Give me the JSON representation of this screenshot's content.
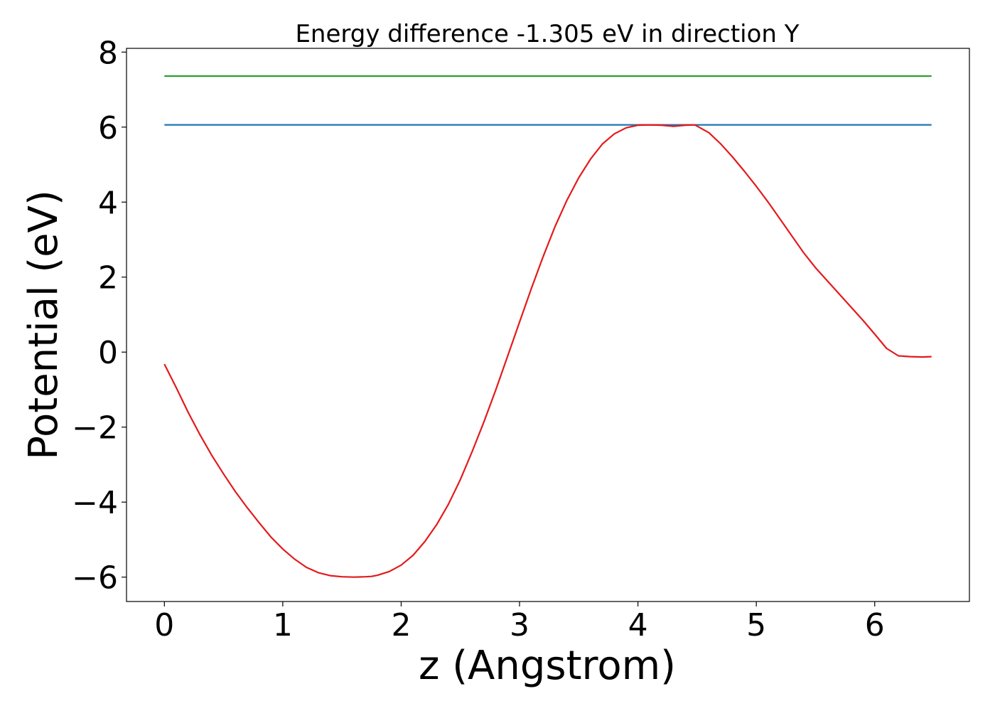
{
  "chart_data": {
    "type": "line",
    "title": "Energy difference -1.305 eV in direction Y",
    "xlabel": "z (Angstrom)",
    "ylabel": "Potential (eV)",
    "xlim": [
      -0.32,
      6.8
    ],
    "ylim": [
      -6.65,
      8.1
    ],
    "xticks": [
      0,
      1,
      2,
      3,
      4,
      5,
      6
    ],
    "yticks": [
      -6,
      -4,
      -2,
      0,
      2,
      4,
      6,
      8
    ],
    "ytick_labels": [
      "−6",
      "−4",
      "−2",
      "0",
      "2",
      "4",
      "6",
      "8"
    ],
    "grid": false,
    "series": [
      {
        "color": "#2ca02c",
        "x": [
          0,
          6.48
        ],
        "y": [
          7.36,
          7.36
        ]
      },
      {
        "color": "#1f77b4",
        "x": [
          0,
          6.48
        ],
        "y": [
          6.06,
          6.06
        ]
      },
      {
        "color": "#e31a1c",
        "x": [
          0,
          0.1,
          0.2,
          0.3,
          0.4,
          0.5,
          0.6,
          0.7,
          0.8,
          0.9,
          1.0,
          1.1,
          1.2,
          1.3,
          1.4,
          1.5,
          1.6,
          1.7,
          1.75,
          1.8,
          1.9,
          2.0,
          2.1,
          2.2,
          2.3,
          2.4,
          2.5,
          2.6,
          2.7,
          2.8,
          2.9,
          3.0,
          3.1,
          3.2,
          3.3,
          3.4,
          3.5,
          3.6,
          3.7,
          3.8,
          3.9,
          4.0,
          4.1,
          4.2,
          4.3,
          4.4,
          4.48,
          4.6,
          4.7,
          4.8,
          4.9,
          5.0,
          5.1,
          5.2,
          5.3,
          5.4,
          5.5,
          5.6,
          5.7,
          5.8,
          5.9,
          6.0,
          6.1,
          6.2,
          6.3,
          6.4,
          6.48
        ],
        "y": [
          -0.32,
          -0.95,
          -1.6,
          -2.2,
          -2.75,
          -3.25,
          -3.72,
          -4.15,
          -4.55,
          -4.93,
          -5.25,
          -5.52,
          -5.74,
          -5.88,
          -5.96,
          -5.99,
          -6.0,
          -5.99,
          -5.98,
          -5.95,
          -5.85,
          -5.68,
          -5.42,
          -5.05,
          -4.6,
          -4.05,
          -3.4,
          -2.65,
          -1.85,
          -1.0,
          -0.1,
          0.8,
          1.7,
          2.55,
          3.35,
          4.05,
          4.65,
          5.15,
          5.55,
          5.82,
          5.98,
          6.05,
          6.06,
          6.05,
          6.02,
          6.05,
          6.06,
          5.85,
          5.55,
          5.2,
          4.82,
          4.42,
          4.0,
          3.55,
          3.1,
          2.65,
          2.25,
          1.9,
          1.55,
          1.2,
          0.85,
          0.48,
          0.1,
          -0.1,
          -0.12,
          -0.13,
          -0.12
        ]
      }
    ]
  }
}
